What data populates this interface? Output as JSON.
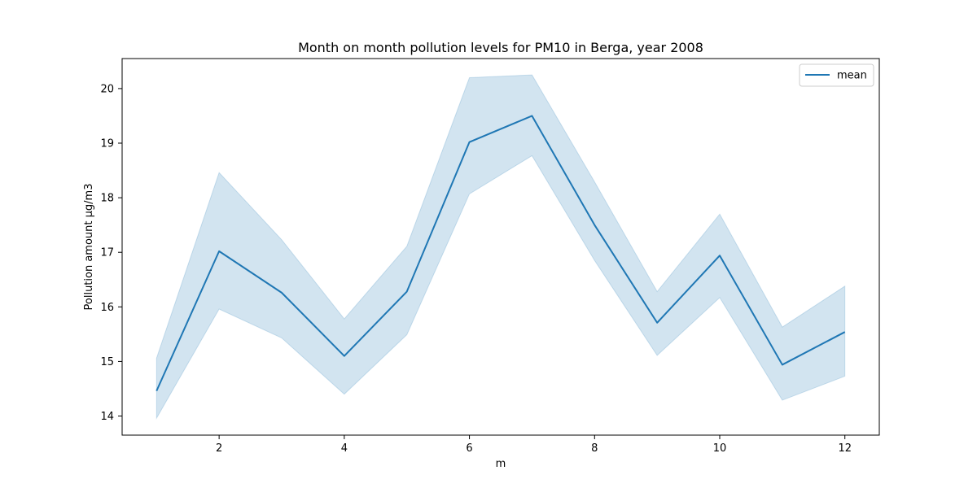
{
  "chart_data": {
    "type": "line",
    "title": "Month on month pollution levels for PM10 in Berga, year 2008",
    "xlabel": "m",
    "ylabel": "Pollution amount µg/m3",
    "xlim": [
      0.45,
      12.55
    ],
    "ylim": [
      13.65,
      20.55
    ],
    "xticks": [
      2,
      4,
      6,
      8,
      10,
      12
    ],
    "yticks": [
      14,
      15,
      16,
      17,
      18,
      19,
      20
    ],
    "grid": false,
    "legend_position": "top-right",
    "series": [
      {
        "name": "mean",
        "color": "#1f77b4",
        "x": [
          1,
          2,
          3,
          4,
          5,
          6,
          7,
          8,
          9,
          10,
          11,
          12
        ],
        "y": [
          14.46,
          17.02,
          16.26,
          15.1,
          16.28,
          19.02,
          19.5,
          17.5,
          15.71,
          16.94,
          14.94,
          15.54
        ],
        "lower": [
          13.96,
          15.96,
          15.43,
          14.4,
          15.49,
          18.07,
          18.77,
          16.85,
          15.11,
          16.17,
          14.29,
          14.73
        ],
        "upper": [
          15.06,
          18.46,
          17.23,
          15.78,
          17.11,
          20.2,
          20.25,
          18.29,
          16.28,
          17.7,
          15.63,
          16.38
        ]
      }
    ]
  }
}
